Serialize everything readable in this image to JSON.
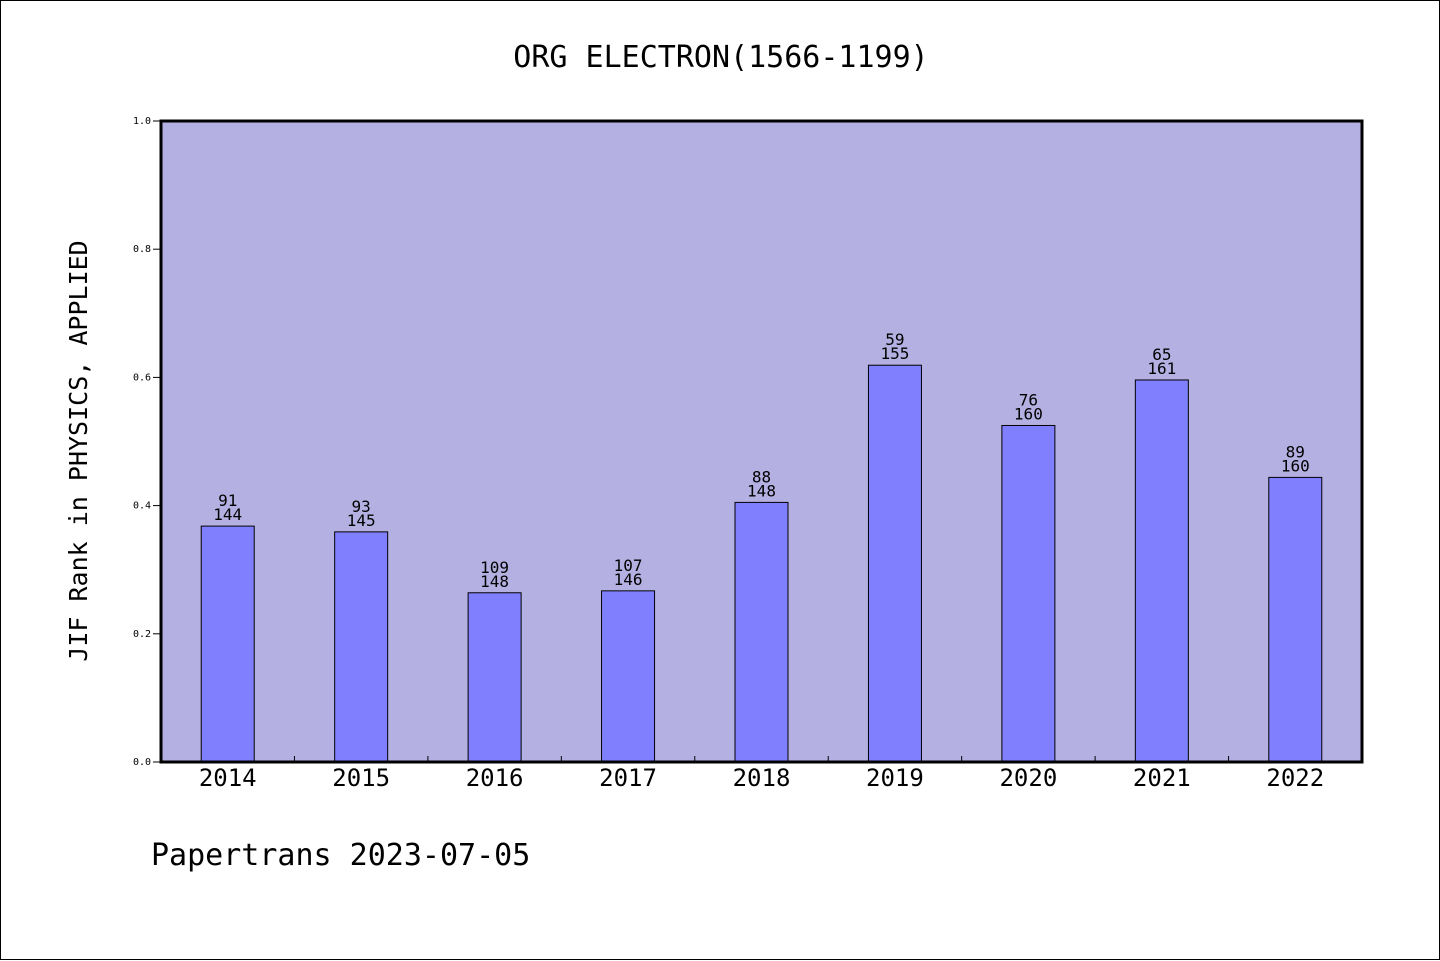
{
  "chart_data": {
    "type": "bar",
    "title": "ORG ELECTRON(1566-1199)",
    "ylabel": "JIF Rank in PHYSICS, APPLIED",
    "xlabel": "",
    "ylim": [
      0.0,
      1.0
    ],
    "yticks": [
      "0.0",
      "0.2",
      "0.4",
      "0.6",
      "0.8",
      "1.0"
    ],
    "grid": false,
    "categories": [
      "2014",
      "2015",
      "2016",
      "2017",
      "2018",
      "2019",
      "2020",
      "2021",
      "2022"
    ],
    "values": [
      0.368,
      0.359,
      0.264,
      0.267,
      0.405,
      0.619,
      0.525,
      0.596,
      0.444
    ],
    "ranks": [
      "91",
      "93",
      "109",
      "107",
      "88",
      "59",
      "76",
      "65",
      "89"
    ],
    "totals": [
      "144",
      "145",
      "148",
      "146",
      "148",
      "155",
      "160",
      "161",
      "160"
    ],
    "colors": {
      "plot_background": "#b5b0e2",
      "bar_fill": "#8080ff",
      "bar_stroke": "#000000"
    }
  },
  "footer": "Papertrans 2023-07-05"
}
